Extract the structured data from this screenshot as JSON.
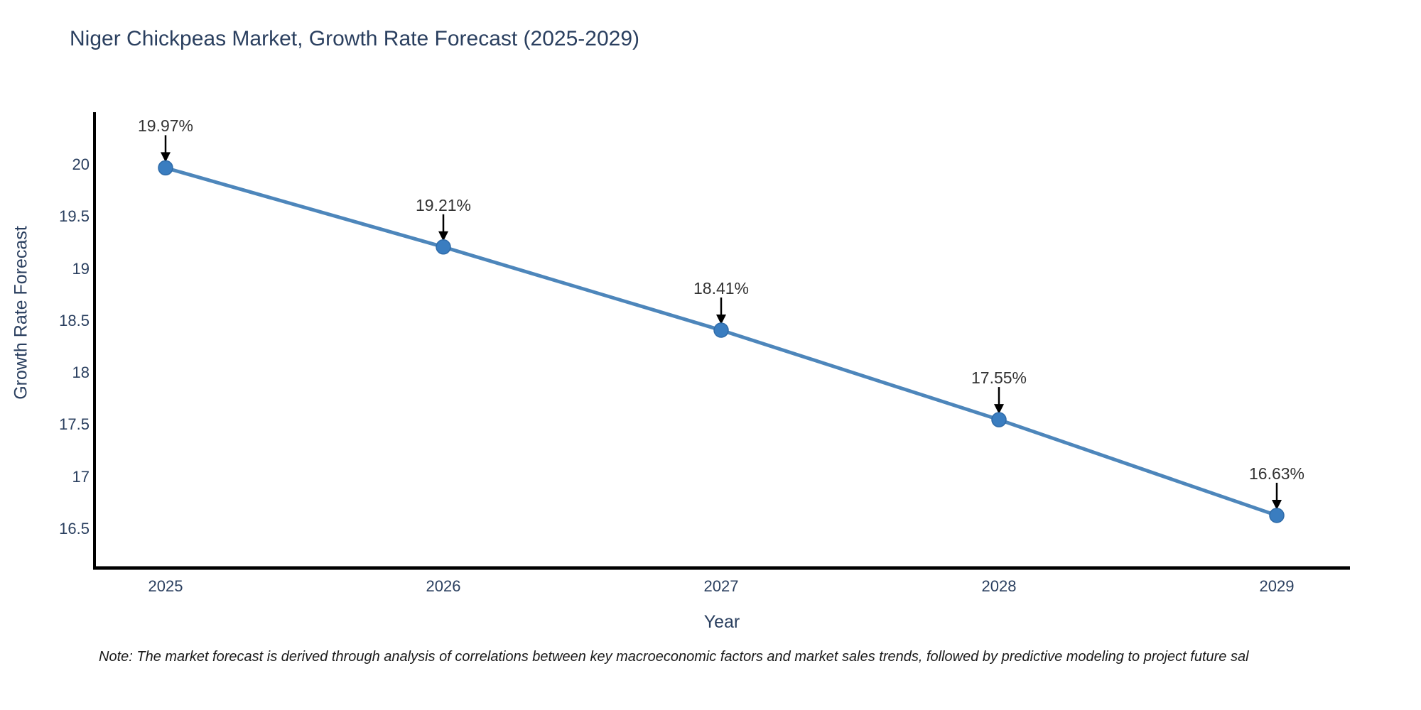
{
  "title": "Niger Chickpeas Market, Growth Rate Forecast (2025-2029)",
  "note": "Note: The market forecast is derived through analysis of correlations between key macroeconomic factors and market sales trends, followed by predictive modeling to project future sal",
  "colors": {
    "line": "#4d86bb",
    "marker": "#3a7dc0",
    "marker_edge": "#2f6ba8",
    "axis": "#000000",
    "arrow": "#000000",
    "text": "#2a3f5f",
    "annotation_text": "#333333"
  },
  "chart_data": {
    "type": "line",
    "title": "Niger Chickpeas Market, Growth Rate Forecast (2025-2029)",
    "xlabel": "Year",
    "ylabel": "Growth Rate Forecast",
    "x": [
      2025,
      2026,
      2027,
      2028,
      2029
    ],
    "values": [
      19.97,
      19.21,
      18.41,
      17.55,
      16.63
    ],
    "data_labels": [
      "19.97%",
      "19.21%",
      "18.41%",
      "17.55%",
      "16.63%"
    ],
    "y_ticks": [
      20,
      19.5,
      19,
      18.5,
      18,
      17.5,
      17,
      16.5
    ],
    "x_ticks": [
      "2025",
      "2026",
      "2027",
      "2028",
      "2029"
    ],
    "ylim": [
      16.12,
      20.5
    ],
    "grid": false,
    "legend_position": "none",
    "marker_style": "circle",
    "annotation_arrows": true
  }
}
